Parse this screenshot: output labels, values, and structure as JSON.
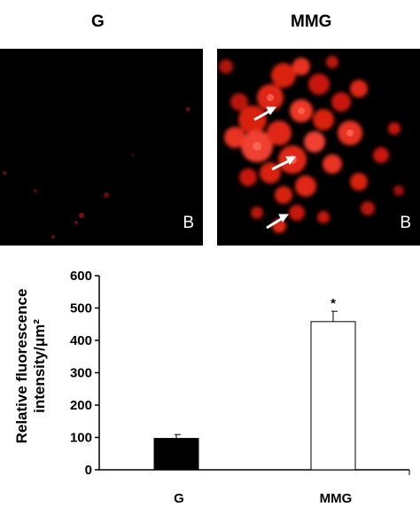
{
  "panels": {
    "left_header": "G",
    "right_header": "MMG",
    "left_letter": "B",
    "right_letter": "B"
  },
  "chart_data": {
    "type": "bar",
    "categories": [
      "G",
      "MMG"
    ],
    "values": [
      97,
      458
    ],
    "errors": [
      12,
      32
    ],
    "significance": [
      "",
      "*"
    ],
    "bar_colors": [
      "#000000",
      "#ffffff"
    ],
    "ylabel_line1": "Relative fluorescence",
    "ylabel_line2": "intensity/μm²",
    "ylim": [
      0,
      600
    ],
    "yticks": [
      0,
      100,
      200,
      300,
      400,
      500,
      600
    ],
    "grid": false
  }
}
